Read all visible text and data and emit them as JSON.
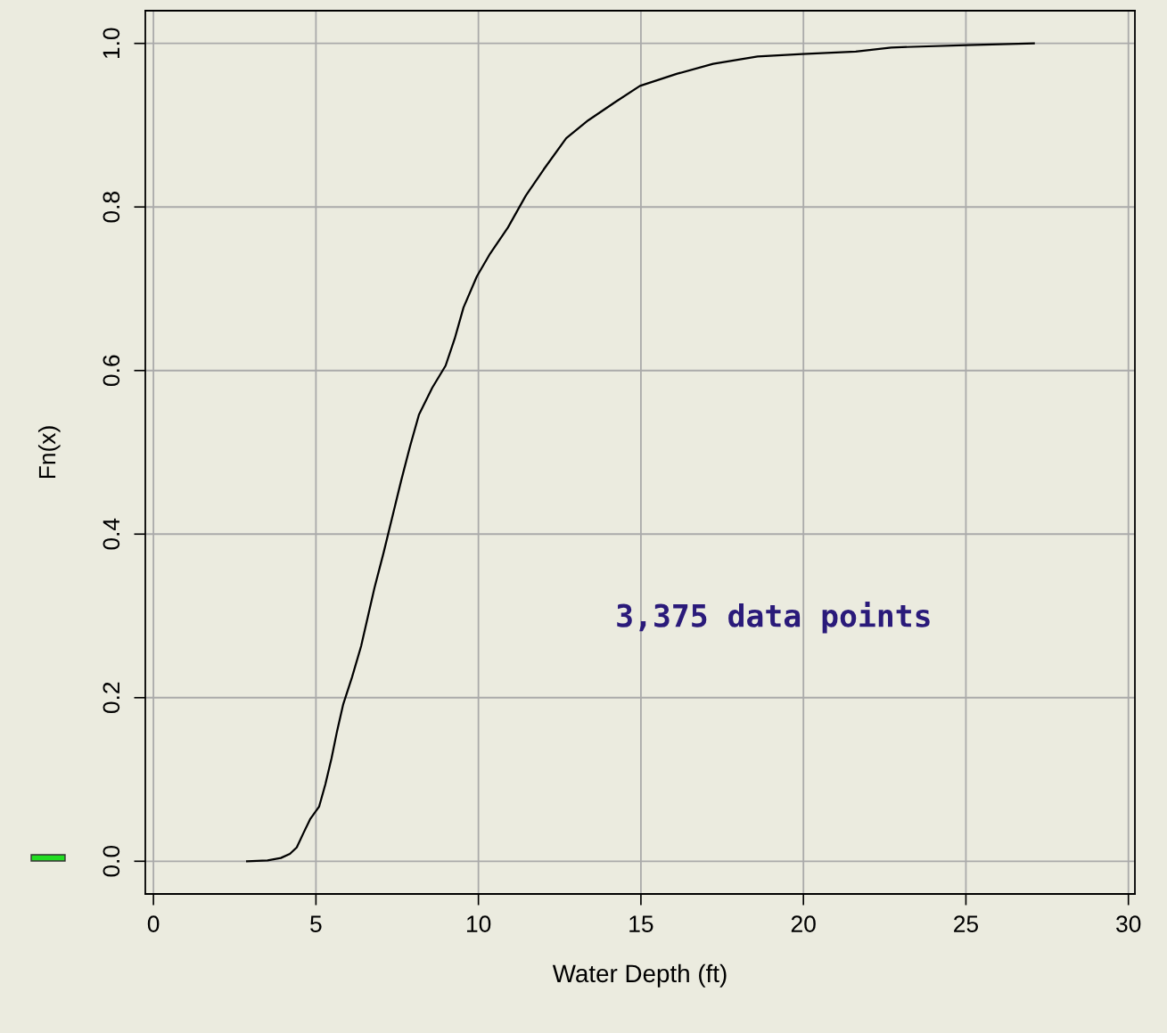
{
  "chart_data": {
    "type": "line",
    "xlabel": "Water Depth (ft)",
    "ylabel": "Fn(x)",
    "annotations": [
      "3,375 data points"
    ],
    "series": [
      {
        "color": "#000000",
        "x": [
          2.88,
          3.51,
          3.92,
          4.2,
          4.41,
          4.61,
          4.83,
          5.1,
          5.29,
          5.48,
          5.65,
          5.84,
          6.11,
          6.39,
          6.61,
          6.8,
          7.08,
          7.35,
          7.62,
          7.9,
          8.17,
          8.58,
          8.99,
          9.27,
          9.54,
          9.95,
          10.36,
          10.91,
          11.46,
          12.01,
          12.7,
          13.38,
          14.2,
          14.97,
          16.12,
          17.22,
          18.59,
          19.96,
          21.61,
          22.7,
          25.03,
          27.09
        ],
        "values": [
          0,
          0.001,
          0.004,
          0.009,
          0.017,
          0.034,
          0.052,
          0.067,
          0.094,
          0.126,
          0.159,
          0.192,
          0.225,
          0.263,
          0.301,
          0.334,
          0.377,
          0.421,
          0.465,
          0.508,
          0.546,
          0.579,
          0.606,
          0.639,
          0.677,
          0.715,
          0.743,
          0.775,
          0.814,
          0.846,
          0.884,
          0.906,
          0.928,
          0.948,
          0.963,
          0.975,
          0.984,
          0.987,
          0.99,
          0.995,
          0.998,
          1.0
        ]
      }
    ],
    "xlim": [
      -0.25,
      30.2
    ],
    "ylim": [
      -0.04,
      1.04
    ],
    "xticks": [
      0,
      5,
      10,
      15,
      20,
      25,
      30
    ],
    "yticks": [
      {
        "value": 0,
        "label": "0.0"
      },
      {
        "value": 0.2,
        "label": "0.2"
      },
      {
        "value": 0.4,
        "label": "0.4"
      },
      {
        "value": 0.6,
        "label": "0.6"
      },
      {
        "value": 0.8,
        "label": "0.8"
      },
      {
        "value": 1.0,
        "label": "1.0"
      }
    ],
    "grid": true,
    "marker": "none",
    "line_style": "solid"
  }
}
